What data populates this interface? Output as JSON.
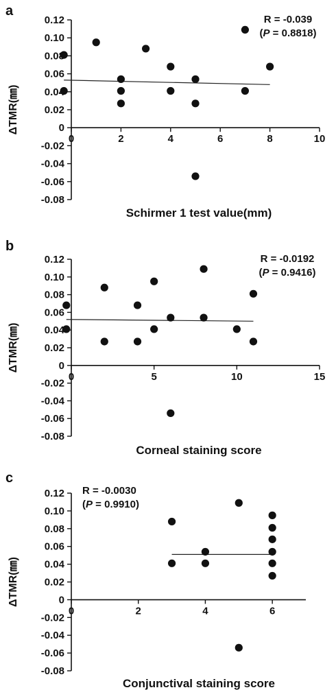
{
  "chart_data": [
    {
      "type": "scatter",
      "panel_label": "a",
      "title": "",
      "xlabel": "Schirmer 1 test value(mm)",
      "ylabel": "ΔTMR(㎜)",
      "xlim": [
        0,
        10
      ],
      "ylim": [
        -0.08,
        0.12
      ],
      "xticks": [
        0,
        2,
        4,
        6,
        8,
        10
      ],
      "yticks": [
        -0.08,
        -0.06,
        -0.04,
        -0.02,
        0,
        0.02,
        0.04,
        0.06,
        0.08,
        0.1,
        0.12
      ],
      "ytick_labels": [
        "-0.08",
        "-0.06",
        "-0.04",
        "-0.02",
        "0",
        "0.02",
        "0.04",
        "0.06",
        "0.08",
        "0.10",
        "0.12"
      ],
      "stat_r": "R = -0.039",
      "stat_p_prefix": "(",
      "stat_p_italic": "P",
      "stat_p_value": " = 0.8818)",
      "stat_position": "top-right",
      "grid": false,
      "points": [
        {
          "x": -0.3,
          "y": 0.081
        },
        {
          "x": -0.3,
          "y": 0.041
        },
        {
          "x": 1,
          "y": 0.095
        },
        {
          "x": 2,
          "y": 0.054
        },
        {
          "x": 2,
          "y": 0.041
        },
        {
          "x": 2,
          "y": 0.027
        },
        {
          "x": 3,
          "y": 0.088
        },
        {
          "x": 4,
          "y": 0.068
        },
        {
          "x": 4,
          "y": 0.041
        },
        {
          "x": 5,
          "y": 0.054
        },
        {
          "x": 5,
          "y": 0.027
        },
        {
          "x": 5,
          "y": -0.054
        },
        {
          "x": 7,
          "y": 0.109
        },
        {
          "x": 7,
          "y": 0.041
        },
        {
          "x": 8,
          "y": 0.068
        }
      ],
      "fit_line": {
        "x": [
          -0.3,
          8
        ],
        "y": [
          0.053,
          0.048
        ]
      }
    },
    {
      "type": "scatter",
      "panel_label": "b",
      "title": "",
      "xlabel": "Corneal staining score",
      "ylabel": "ΔTMR(㎜)",
      "xlim": [
        0,
        15
      ],
      "ylim": [
        -0.08,
        0.12
      ],
      "xticks": [
        0,
        5,
        10,
        15
      ],
      "yticks": [
        -0.08,
        -0.06,
        -0.04,
        -0.02,
        0,
        0.02,
        0.04,
        0.06,
        0.08,
        0.1,
        0.12
      ],
      "ytick_labels": [
        "-0.08",
        "-0.06",
        "-0.04",
        "-0.02",
        "0",
        "0.02",
        "0.04",
        "0.06",
        "0.08",
        "0.10",
        "0.12"
      ],
      "stat_r": "R = -0.0192",
      "stat_p_prefix": "(",
      "stat_p_italic": "P",
      "stat_p_value": " = 0.9416)",
      "stat_position": "top-right",
      "grid": false,
      "points": [
        {
          "x": -0.3,
          "y": 0.068
        },
        {
          "x": -0.3,
          "y": 0.041
        },
        {
          "x": 2,
          "y": 0.088
        },
        {
          "x": 2,
          "y": 0.027
        },
        {
          "x": 4,
          "y": 0.068
        },
        {
          "x": 4,
          "y": 0.027
        },
        {
          "x": 5,
          "y": 0.095
        },
        {
          "x": 5,
          "y": 0.041
        },
        {
          "x": 6,
          "y": 0.054
        },
        {
          "x": 6,
          "y": -0.054
        },
        {
          "x": 8,
          "y": 0.109
        },
        {
          "x": 8,
          "y": 0.054
        },
        {
          "x": 10,
          "y": 0.041
        },
        {
          "x": 11,
          "y": 0.081
        },
        {
          "x": 11,
          "y": 0.027
        }
      ],
      "fit_line": {
        "x": [
          -0.3,
          11
        ],
        "y": [
          0.052,
          0.05
        ]
      }
    },
    {
      "type": "scatter",
      "panel_label": "c",
      "title": "",
      "xlabel": "Conjunctival staining score",
      "ylabel": "ΔTMR(㎜)",
      "xlim": [
        0,
        7
      ],
      "ylim": [
        -0.08,
        0.12
      ],
      "xticks": [
        0,
        2,
        4,
        6
      ],
      "yticks": [
        -0.08,
        -0.06,
        -0.04,
        -0.02,
        0,
        0.02,
        0.04,
        0.06,
        0.08,
        0.1,
        0.12
      ],
      "ytick_labels": [
        "-0.08",
        "-0.06",
        "-0.04",
        "-0.02",
        "0",
        "0.02",
        "0.04",
        "0.06",
        "0.08",
        "0.10",
        "0.12"
      ],
      "stat_r": "R = -0.0030",
      "stat_p_prefix": "(",
      "stat_p_italic": "P",
      "stat_p_value": " = 0.9910)",
      "stat_position": "top-left",
      "grid": false,
      "points": [
        {
          "x": 3,
          "y": 0.088
        },
        {
          "x": 3,
          "y": 0.041
        },
        {
          "x": 4,
          "y": 0.054
        },
        {
          "x": 4,
          "y": 0.041
        },
        {
          "x": 5,
          "y": 0.109
        },
        {
          "x": 5,
          "y": -0.054
        },
        {
          "x": 6,
          "y": 0.095
        },
        {
          "x": 6,
          "y": 0.081
        },
        {
          "x": 6,
          "y": 0.068
        },
        {
          "x": 6,
          "y": 0.054
        },
        {
          "x": 6,
          "y": 0.041
        },
        {
          "x": 6,
          "y": 0.027
        }
      ],
      "fit_line": {
        "x": [
          3,
          6
        ],
        "y": [
          0.051,
          0.051
        ]
      }
    }
  ]
}
